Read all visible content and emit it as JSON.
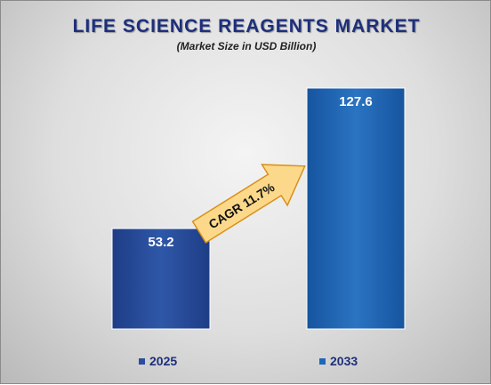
{
  "chart_data": {
    "type": "bar",
    "title": "LIFE SCIENCE REAGENTS MARKET",
    "subtitle": "(Market Size in USD Billion)",
    "categories": [
      "2025",
      "2033"
    ],
    "values": [
      53.2,
      127.6
    ],
    "data_labels": [
      "53.2",
      "127.6"
    ],
    "annotation": "CAGR 11.7%",
    "legend_position": "bottom",
    "grid": false,
    "ylim": [
      0,
      127.6
    ],
    "colors": {
      "bar_2025": "#2a4d9e",
      "bar_2033": "#1f66b6",
      "title": "#1d2f7c",
      "arrow_fill": "#fcd98a",
      "arrow_stroke": "#d9901a"
    }
  }
}
